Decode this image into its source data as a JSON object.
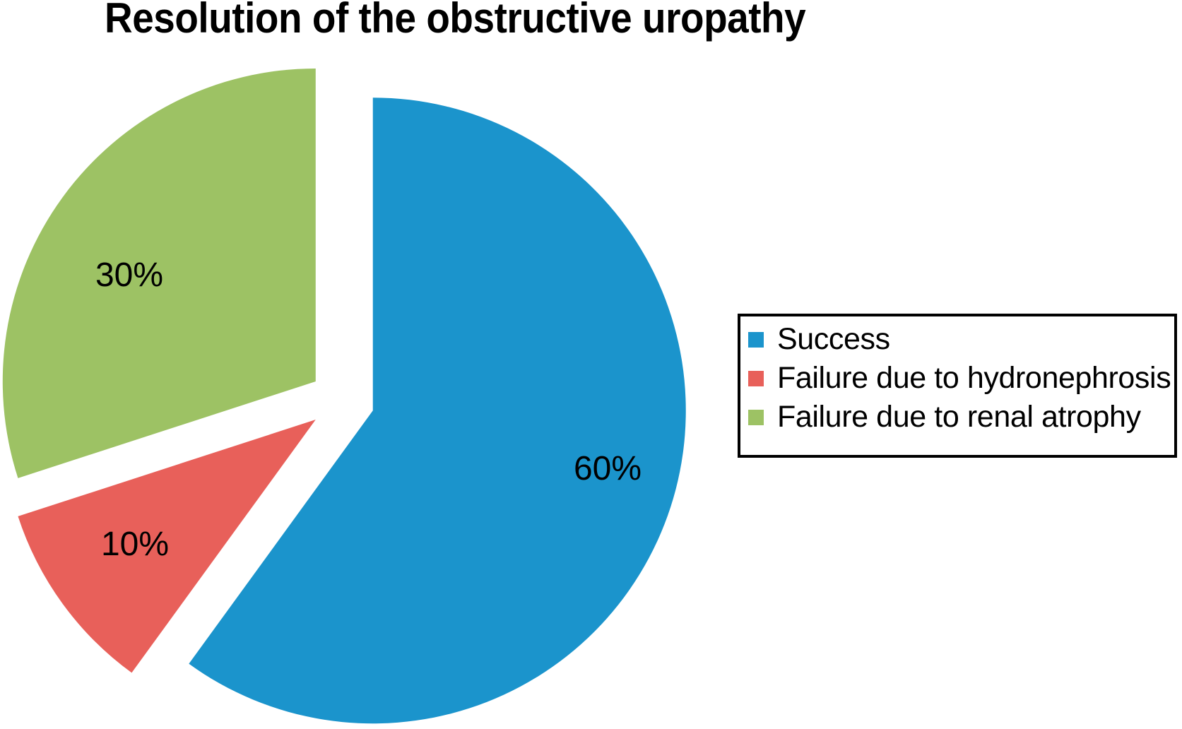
{
  "page": {
    "background": "#ffffff"
  },
  "chart_data": {
    "type": "pie",
    "title": "Resolution of the obstructive uropathy",
    "start_angle": "top",
    "direction": "clockwise",
    "explode_fraction": 0.1,
    "legend_position": "right",
    "legend_border": true,
    "slices": [
      {
        "label": "Success",
        "value": 60,
        "pct_label": "60%",
        "color": "#1b94cc"
      },
      {
        "label": "Failure due to hydronephrosis",
        "value": 10,
        "pct_label": "10%",
        "color": "#e8605a"
      },
      {
        "label": "Failure due to renal atrophy",
        "value": 30,
        "pct_label": "30%",
        "color": "#9dc264"
      }
    ]
  }
}
